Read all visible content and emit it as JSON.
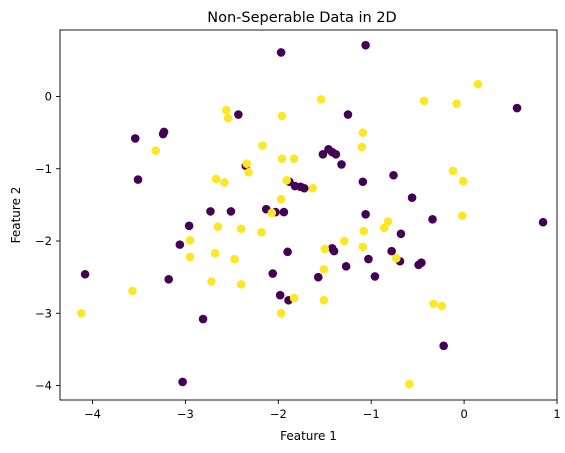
{
  "chart_data": {
    "type": "scatter",
    "title": "Non-Seperable Data in 2D",
    "xlabel": "Feature 1",
    "ylabel": "Feature 2",
    "xlim": [
      -4.35,
      1.0
    ],
    "ylim": [
      -4.2,
      0.92
    ],
    "xticks": [
      -4,
      -3,
      -2,
      -1,
      0,
      1
    ],
    "yticks": [
      -4,
      -3,
      -2,
      -1,
      0
    ],
    "grid": false,
    "legend": "none",
    "series": [
      {
        "color": "#440154",
        "points": [
          [
            -1.97,
            0.61
          ],
          [
            -1.06,
            0.71
          ],
          [
            0.57,
            -0.16
          ],
          [
            0.85,
            -1.74
          ],
          [
            -3.54,
            -0.58
          ],
          [
            -3.24,
            -0.52
          ],
          [
            -3.23,
            -0.49
          ],
          [
            -3.51,
            -1.15
          ],
          [
            -2.43,
            -0.25
          ],
          [
            -1.25,
            -0.25
          ],
          [
            -2.35,
            -0.96
          ],
          [
            -1.52,
            -0.8
          ],
          [
            -1.46,
            -0.73
          ],
          [
            -1.42,
            -0.77
          ],
          [
            -1.38,
            -0.8
          ],
          [
            -1.32,
            -0.94
          ],
          [
            -1.09,
            -1.18
          ],
          [
            -0.76,
            -1.09
          ],
          [
            -0.56,
            -1.4
          ],
          [
            -1.88,
            -1.18
          ],
          [
            -1.82,
            -1.24
          ],
          [
            -1.76,
            -1.25
          ],
          [
            -1.72,
            -1.27
          ],
          [
            -2.73,
            -1.59
          ],
          [
            -2.51,
            -1.59
          ],
          [
            -2.13,
            -1.56
          ],
          [
            -2.03,
            -1.6
          ],
          [
            -1.94,
            -1.6
          ],
          [
            -1.06,
            -1.63
          ],
          [
            -0.34,
            -1.7
          ],
          [
            -2.96,
            -1.79
          ],
          [
            -3.06,
            -2.05
          ],
          [
            -1.9,
            -2.15
          ],
          [
            -1.42,
            -2.1
          ],
          [
            -1.4,
            -2.14
          ],
          [
            -0.78,
            -2.14
          ],
          [
            -0.68,
            -1.9
          ],
          [
            -1.03,
            -2.25
          ],
          [
            -0.69,
            -2.28
          ],
          [
            -0.49,
            -2.33
          ],
          [
            -0.46,
            -2.3
          ],
          [
            -1.27,
            -2.35
          ],
          [
            -0.96,
            -2.49
          ],
          [
            -2.06,
            -2.45
          ],
          [
            -1.57,
            -2.5
          ],
          [
            -4.08,
            -2.46
          ],
          [
            -3.18,
            -2.53
          ],
          [
            -1.98,
            -2.75
          ],
          [
            -1.89,
            -2.82
          ],
          [
            -2.81,
            -3.08
          ],
          [
            -0.22,
            -3.45
          ],
          [
            -3.03,
            -3.95
          ]
        ]
      },
      {
        "color": "#fde725",
        "points": [
          [
            0.15,
            0.17
          ],
          [
            -0.43,
            -0.06
          ],
          [
            -0.08,
            -0.1
          ],
          [
            -1.54,
            -0.04
          ],
          [
            -2.56,
            -0.19
          ],
          [
            -2.54,
            -0.3
          ],
          [
            -1.96,
            -0.27
          ],
          [
            -1.09,
            -0.5
          ],
          [
            -1.1,
            -0.7
          ],
          [
            -3.32,
            -0.75
          ],
          [
            -2.17,
            -0.68
          ],
          [
            -1.96,
            -0.86
          ],
          [
            -1.83,
            -0.86
          ],
          [
            -2.34,
            -0.93
          ],
          [
            -2.32,
            -1.05
          ],
          [
            -0.12,
            -1.03
          ],
          [
            -0.01,
            -1.17
          ],
          [
            -2.67,
            -1.14
          ],
          [
            -2.58,
            -1.19
          ],
          [
            -1.91,
            -1.16
          ],
          [
            -1.63,
            -1.27
          ],
          [
            -1.97,
            -1.42
          ],
          [
            -2.07,
            -1.61
          ],
          [
            -2.65,
            -1.8
          ],
          [
            -2.4,
            -1.83
          ],
          [
            -2.18,
            -1.88
          ],
          [
            -1.08,
            -1.86
          ],
          [
            -0.82,
            -1.73
          ],
          [
            -0.86,
            -1.82
          ],
          [
            -0.02,
            -1.65
          ],
          [
            -2.95,
            -1.99
          ],
          [
            -2.68,
            -2.17
          ],
          [
            -2.47,
            -2.25
          ],
          [
            -2.95,
            -2.22
          ],
          [
            -1.5,
            -2.11
          ],
          [
            -1.29,
            -2.0
          ],
          [
            -1.09,
            -2.08
          ],
          [
            -0.73,
            -2.24
          ],
          [
            -1.51,
            -2.39
          ],
          [
            -2.72,
            -2.56
          ],
          [
            -2.4,
            -2.6
          ],
          [
            -1.83,
            -2.79
          ],
          [
            -1.97,
            -3.0
          ],
          [
            -1.51,
            -2.82
          ],
          [
            -3.57,
            -2.69
          ],
          [
            -4.12,
            -3.0
          ],
          [
            -0.33,
            -2.87
          ],
          [
            -0.24,
            -2.9
          ],
          [
            -0.59,
            -3.98
          ]
        ]
      }
    ]
  }
}
